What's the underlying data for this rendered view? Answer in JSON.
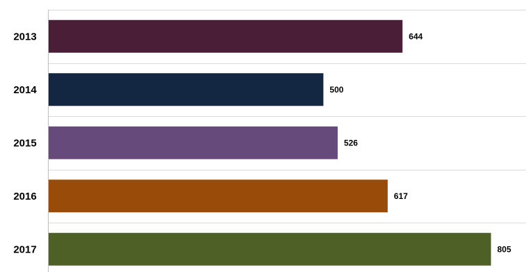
{
  "chart_data": {
    "type": "bar",
    "orientation": "horizontal",
    "title": "",
    "xlabel": "",
    "ylabel": "",
    "categories": [
      "2013",
      "2014",
      "2015",
      "2016",
      "2017"
    ],
    "values": [
      644,
      500,
      526,
      617,
      805
    ],
    "data_labels": [
      "644",
      "500",
      "526",
      "617",
      "805"
    ],
    "colors": [
      "#4a1e36",
      "#132642",
      "#654a7b",
      "#994b09",
      "#4f6027"
    ],
    "xlim": [
      0,
      870
    ],
    "grid": true,
    "legend": "none"
  }
}
